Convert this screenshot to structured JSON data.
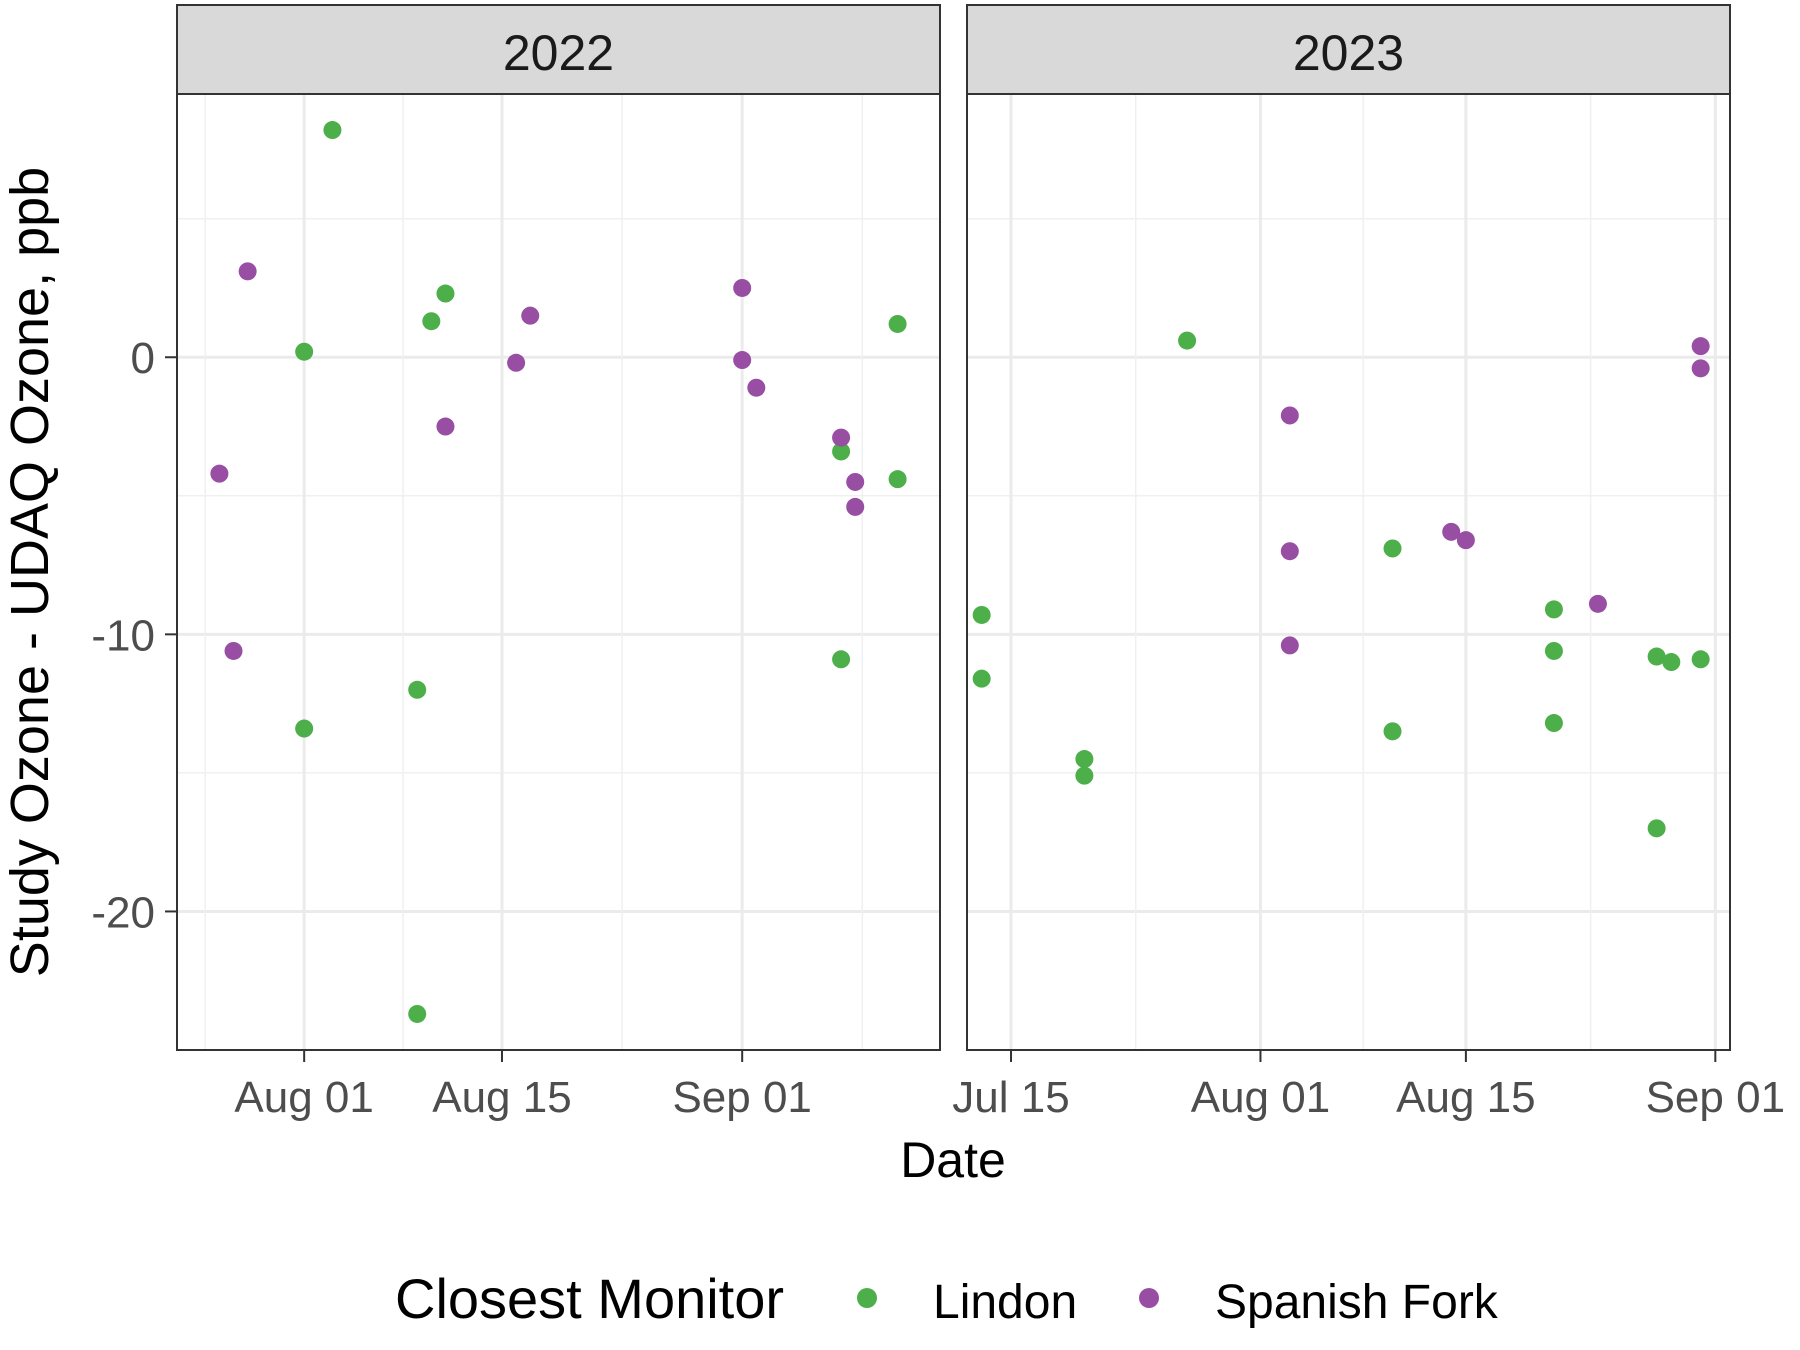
{
  "chart_data": {
    "type": "scatter",
    "xlabel": "Date",
    "ylabel": "Study Ozone - UDAQ Ozone, ppb",
    "ylim": [
      -25,
      9.5
    ],
    "y_ticks": [
      0,
      -10,
      -20
    ],
    "y_tick_labels": [
      "0",
      "-10",
      "-20"
    ],
    "grid": true,
    "legend": {
      "position": "bottom",
      "title": "Closest Monitor",
      "entries": [
        "Lindon",
        "Spanish Fork"
      ]
    },
    "colors": {
      "Lindon": "#4daf4a",
      "Spanish Fork": "#984ea3"
    },
    "panels": [
      {
        "strip": "2022",
        "xlim": [
          "2022-07-23",
          "2022-09-15"
        ],
        "x_ticks": [
          "2022-08-01",
          "2022-08-15",
          "2022-09-01"
        ],
        "x_tick_labels": [
          "Aug 01",
          "Aug 15",
          "Sep 01"
        ],
        "series": [
          {
            "name": "Lindon",
            "points": [
              {
                "x": "2022-08-01",
                "y": 0.2
              },
              {
                "x": "2022-08-01",
                "y": -13.4
              },
              {
                "x": "2022-08-03",
                "y": 8.2
              },
              {
                "x": "2022-08-09",
                "y": -12.0
              },
              {
                "x": "2022-08-09",
                "y": -23.7
              },
              {
                "x": "2022-08-10",
                "y": 1.3
              },
              {
                "x": "2022-08-11",
                "y": 2.3
              },
              {
                "x": "2022-09-08",
                "y": -3.4
              },
              {
                "x": "2022-09-08",
                "y": -10.9
              },
              {
                "x": "2022-09-12",
                "y": 1.2
              },
              {
                "x": "2022-09-12",
                "y": -4.4
              }
            ]
          },
          {
            "name": "Spanish Fork",
            "points": [
              {
                "x": "2022-07-26",
                "y": -4.2
              },
              {
                "x": "2022-07-27",
                "y": -10.6
              },
              {
                "x": "2022-07-28",
                "y": 3.1
              },
              {
                "x": "2022-08-11",
                "y": -2.5
              },
              {
                "x": "2022-08-16",
                "y": -0.2
              },
              {
                "x": "2022-08-17",
                "y": 1.5
              },
              {
                "x": "2022-09-01",
                "y": 2.5
              },
              {
                "x": "2022-09-01",
                "y": -0.1
              },
              {
                "x": "2022-09-02",
                "y": -1.1
              },
              {
                "x": "2022-09-08",
                "y": -2.9
              },
              {
                "x": "2022-09-09",
                "y": -4.5
              },
              {
                "x": "2022-09-09",
                "y": -5.4
              }
            ]
          }
        ]
      },
      {
        "strip": "2023",
        "xlim": [
          "2023-07-12",
          "2023-09-02"
        ],
        "x_ticks": [
          "2023-07-15",
          "2023-08-01",
          "2023-08-15",
          "2023-09-01"
        ],
        "x_tick_labels": [
          "Jul 15",
          "Aug 01",
          "Aug 15",
          "Sep 01"
        ],
        "series": [
          {
            "name": "Lindon",
            "points": [
              {
                "x": "2023-07-13",
                "y": -9.3
              },
              {
                "x": "2023-07-13",
                "y": -11.6
              },
              {
                "x": "2023-07-20",
                "y": -14.5
              },
              {
                "x": "2023-07-20",
                "y": -15.1
              },
              {
                "x": "2023-07-27",
                "y": 0.6
              },
              {
                "x": "2023-08-10",
                "y": -6.9
              },
              {
                "x": "2023-08-10",
                "y": -13.5
              },
              {
                "x": "2023-08-21",
                "y": -9.1
              },
              {
                "x": "2023-08-21",
                "y": -10.6
              },
              {
                "x": "2023-08-21",
                "y": -13.2
              },
              {
                "x": "2023-08-28",
                "y": -10.8
              },
              {
                "x": "2023-08-28",
                "y": -17.0
              },
              {
                "x": "2023-08-29",
                "y": -11.0
              },
              {
                "x": "2023-08-31",
                "y": -10.9
              }
            ]
          },
          {
            "name": "Spanish Fork",
            "points": [
              {
                "x": "2023-08-03",
                "y": -2.1
              },
              {
                "x": "2023-08-03",
                "y": -7.0
              },
              {
                "x": "2023-08-03",
                "y": -10.4
              },
              {
                "x": "2023-08-14",
                "y": -6.3
              },
              {
                "x": "2023-08-15",
                "y": -6.6
              },
              {
                "x": "2023-08-24",
                "y": -8.9
              },
              {
                "x": "2023-08-31",
                "y": 0.4
              },
              {
                "x": "2023-08-31",
                "y": -0.4
              }
            ]
          }
        ]
      }
    ]
  }
}
